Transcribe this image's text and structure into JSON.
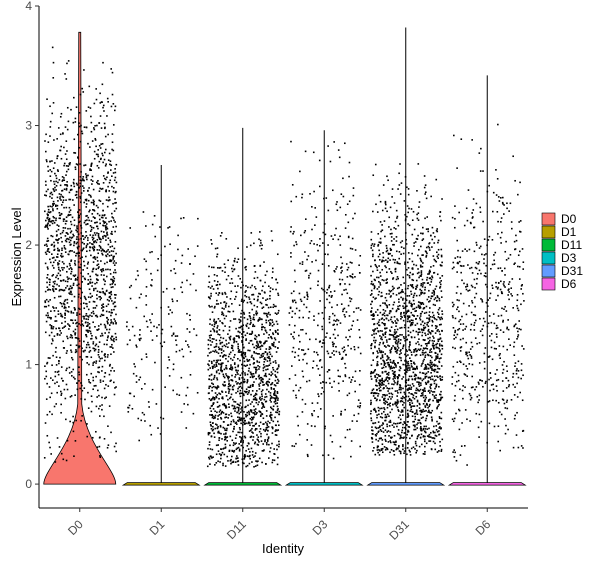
{
  "chart_data": {
    "type": "violin",
    "xlabel": "Identity",
    "ylabel": "Expression Level",
    "ylim": [
      -0.2,
      4.0
    ],
    "yticks": [
      0,
      1,
      2,
      3,
      4
    ],
    "categories": [
      "D0",
      "D1",
      "D11",
      "D3",
      "D31",
      "D6"
    ],
    "colors": [
      "#F8766D",
      "#B79F00",
      "#00BA38",
      "#00BFC4",
      "#619CFF",
      "#F564E3"
    ],
    "max_values": [
      3.78,
      2.67,
      2.98,
      2.96,
      3.82,
      3.42
    ],
    "points": {
      "jitter_seed": 7,
      "groups": [
        {
          "category": "D0",
          "count": 1500,
          "min": 0.15,
          "max": 3.75,
          "center": 1.85,
          "spread": 0.75
        },
        {
          "category": "D1",
          "count": 180,
          "min": 0.25,
          "max": 2.3,
          "center": 1.3,
          "spread": 0.6
        },
        {
          "category": "D11",
          "count": 1400,
          "min": 0.15,
          "max": 3.0,
          "center": 0.8,
          "spread": 0.6
        },
        {
          "category": "D3",
          "count": 420,
          "min": 0.2,
          "max": 2.95,
          "center": 1.3,
          "spread": 0.7
        },
        {
          "category": "D31",
          "count": 1800,
          "min": 0.25,
          "max": 3.8,
          "center": 1.0,
          "spread": 0.75
        },
        {
          "category": "D6",
          "count": 520,
          "min": 0.15,
          "max": 3.4,
          "center": 1.35,
          "spread": 0.7
        }
      ]
    },
    "legend": {
      "placement": "right",
      "entries": [
        "D0",
        "D1",
        "D11",
        "D3",
        "D31",
        "D6"
      ]
    }
  }
}
